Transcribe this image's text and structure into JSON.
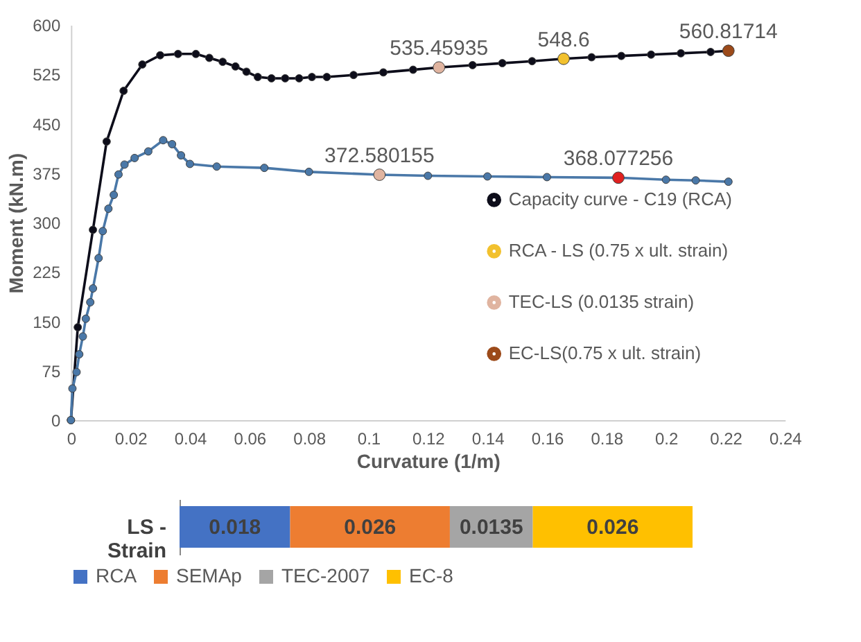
{
  "chart_data": [
    {
      "type": "line",
      "xlabel": "Curvature (1/m)",
      "ylabel": "Moment  (kN.m)",
      "xlim": [
        0,
        0.24
      ],
      "xticks": [
        0,
        0.02,
        0.04,
        0.06,
        0.08,
        0.1,
        0.12,
        0.14,
        0.16,
        0.18,
        0.2,
        0.22,
        0.24
      ],
      "ylim": [
        0,
        600
      ],
      "yticks": [
        0,
        75,
        150,
        225,
        300,
        375,
        450,
        525,
        600
      ],
      "grid": false,
      "legend": "right",
      "marker": "circle",
      "line_style": "solid",
      "series": [
        {
          "name": "Capacity curve - C19 (RCA)",
          "color": "#0d0d1a",
          "x": [
            0,
            0.0023,
            0.0074,
            0.012,
            0.0177,
            0.024,
            0.03,
            0.036,
            0.042,
            0.0465,
            0.051,
            0.0553,
            0.059,
            0.0628,
            0.0674,
            0.072,
            0.0767,
            0.081,
            0.086,
            0.095,
            0.105,
            0.115,
            0.1237,
            0.135,
            0.145,
            0.155,
            0.1656,
            0.175,
            0.185,
            0.195,
            0.205,
            0.215,
            0.221
          ],
          "values": [
            0,
            141,
            289,
            423,
            500,
            540,
            554,
            556,
            556,
            550,
            544,
            537,
            529,
            521,
            519,
            519,
            519,
            521,
            521,
            524,
            528,
            532,
            535.45935,
            539,
            542,
            545,
            548.6,
            551,
            553,
            555,
            557,
            559,
            560.81714
          ]
        },
        {
          "color": "#4a78a8",
          "x": [
            0,
            0.0005,
            0.0019,
            0.0028,
            0.004,
            0.005,
            0.0065,
            0.0074,
            0.0093,
            0.0107,
            0.0126,
            0.0144,
            0.016,
            0.018,
            0.0214,
            0.026,
            0.031,
            0.034,
            0.037,
            0.04,
            0.049,
            0.065,
            0.08,
            0.1037,
            0.12,
            0.14,
            0.16,
            0.184,
            0.2,
            0.21,
            0.221
          ],
          "values": [
            0,
            48,
            73,
            100,
            127,
            154,
            179,
            200,
            246,
            287,
            321,
            342,
            373,
            388,
            398,
            408,
            425,
            419,
            402,
            389,
            385,
            383,
            377,
            372.580155,
            371,
            370,
            369,
            368.077256,
            365,
            364,
            362
          ]
        },
        {
          "name": "RCA - LS (0.75 x ult. strain)",
          "type": "scatter",
          "color": "#f2c12e",
          "x": [
            0.1656
          ],
          "values": [
            548.6
          ],
          "value_labels": [
            "548.6"
          ]
        },
        {
          "name": "TEC-LS (0.0135 strain)",
          "type": "scatter",
          "color": "#e0b4a0",
          "x": [
            0.1237,
            0.1037
          ],
          "values": [
            535.45935,
            372.580155
          ],
          "value_labels": [
            "535.45935",
            "372.580155"
          ]
        },
        {
          "name": "EC-LS(0.75 x ult. strain)",
          "type": "scatter",
          "color": "#9c4a1a",
          "colors": [
            "#9c4a1a",
            "#e02020"
          ],
          "x": [
            0.221,
            0.184
          ],
          "values": [
            560.81714,
            368.077256
          ],
          "value_labels": [
            "560.81714",
            "368.077256"
          ]
        }
      ]
    },
    {
      "type": "bar",
      "orientation": "horizontal",
      "stacked": true,
      "categories": [
        "LS - Strain"
      ],
      "tick_labels": "y",
      "data_labels": true,
      "grid": false,
      "legend": "bottom",
      "series": [
        {
          "name": "RCA",
          "color": "#4472c4",
          "values": [
            0.018
          ]
        },
        {
          "name": "SEMAp",
          "color": "#ed7d31",
          "values": [
            0.026
          ]
        },
        {
          "name": "TEC-2007",
          "color": "#a5a5a5",
          "values": [
            0.0135
          ]
        },
        {
          "name": "EC-8",
          "color": "#ffc000",
          "values": [
            0.026
          ]
        }
      ]
    }
  ]
}
